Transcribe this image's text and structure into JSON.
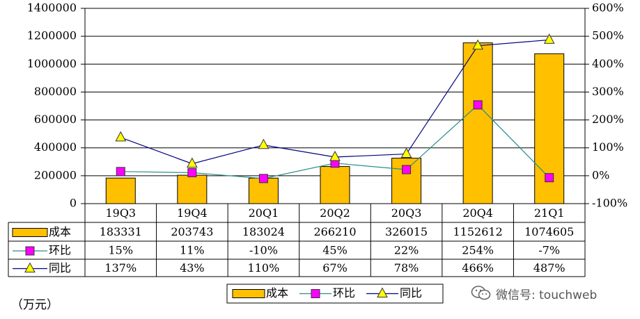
{
  "chart_data": {
    "type": "bar",
    "categories": [
      "19Q3",
      "19Q4",
      "20Q1",
      "20Q2",
      "20Q3",
      "20Q4",
      "21Q1"
    ],
    "series": [
      {
        "name": "成本",
        "type": "bar",
        "axis": "left",
        "color": "#FFC000",
        "values": [
          183331,
          203743,
          183024,
          266210,
          326015,
          1152612,
          1074605
        ]
      },
      {
        "name": "环比",
        "type": "line",
        "axis": "right",
        "color": "#2E8B8B",
        "marker_color": "#FF00FF",
        "values": [
          15,
          11,
          -10,
          45,
          22,
          254,
          -7
        ],
        "labels": [
          "15%",
          "11%",
          "-10%",
          "45%",
          "22%",
          "254%",
          "-7%"
        ]
      },
      {
        "name": "同比",
        "type": "line",
        "axis": "right",
        "color": "#000080",
        "marker_color": "#FFFF00",
        "values": [
          137,
          43,
          110,
          67,
          78,
          466,
          487
        ],
        "labels": [
          "137%",
          "43%",
          "110%",
          "67%",
          "78%",
          "466%",
          "487%"
        ]
      }
    ],
    "y_left": {
      "range": [
        0,
        1400000
      ],
      "ticks": [
        "0",
        "200000",
        "400000",
        "600000",
        "800000",
        "1000000",
        "1200000",
        "1400000"
      ]
    },
    "y_right": {
      "range": [
        -100,
        600
      ],
      "ticks": [
        "-100%",
        "0%",
        "100%",
        "200%",
        "300%",
        "400%",
        "500%",
        "600%"
      ]
    },
    "grid": true,
    "legend": "bottom-center",
    "data_table": true,
    "unit_label": "（万元）"
  },
  "watermark": {
    "text": "微信号: touchweb",
    "icon": "wechat-icon"
  }
}
